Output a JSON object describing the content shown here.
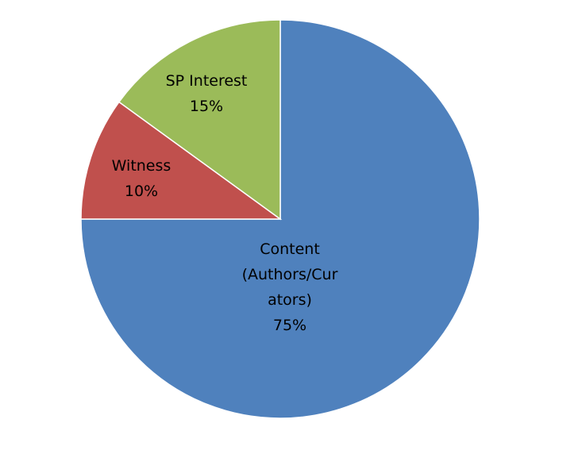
{
  "chart_data": {
    "type": "pie",
    "categories": [
      "Content (Authors/Curators)",
      "Witness",
      "SP Interest"
    ],
    "values": [
      75,
      10,
      15
    ],
    "value_labels": [
      "75%",
      "10%",
      "15%"
    ],
    "colors": [
      "#4f81bd",
      "#c0504d",
      "#9bbb59"
    ]
  }
}
